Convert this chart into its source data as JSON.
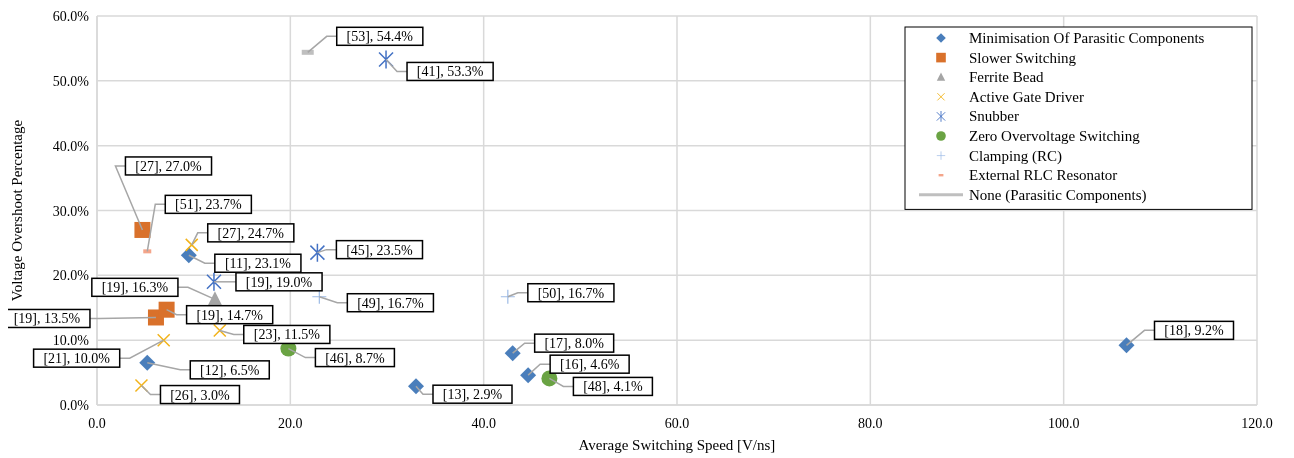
{
  "chart_data": {
    "type": "scatter",
    "xlabel": "Average Switching Speed [V/ns]",
    "ylabel": "Voltage Overshoot Percentage",
    "xlim": [
      0,
      120
    ],
    "xticks": [
      {
        "value": 0,
        "label": "0.0"
      },
      {
        "value": 20,
        "label": "20.0"
      },
      {
        "value": 40,
        "label": "40.0"
      },
      {
        "value": 60,
        "label": "60.0"
      },
      {
        "value": 80,
        "label": "80.0"
      },
      {
        "value": 100,
        "label": "100.0"
      },
      {
        "value": 120,
        "label": "120.0"
      }
    ],
    "ylim": [
      0,
      60
    ],
    "yticks": [
      {
        "value": 0,
        "label": "0.0%"
      },
      {
        "value": 10,
        "label": "10.0%"
      },
      {
        "value": 20,
        "label": "20.0%"
      },
      {
        "value": 30,
        "label": "30.0%"
      },
      {
        "value": 40,
        "label": "40.0%"
      },
      {
        "value": 50,
        "label": "50.0%"
      },
      {
        "value": 60,
        "label": "60.0%"
      }
    ],
    "grid": true,
    "legend": "top right",
    "series": [
      {
        "name": "Minimisation Of Parasitic Components",
        "color": "#4a7ebb",
        "marker": "diamond",
        "x": [
          9.5,
          5.2,
          33.0,
          43.0,
          44.6,
          106.5
        ],
        "values": [
          23.1,
          6.5,
          2.9,
          8.0,
          4.6,
          9.2
        ],
        "value_labels": [
          "[11], 23.1%",
          "[12], 6.5%",
          "[13], 2.9%",
          "[17], 8.0%",
          "[16], 4.6%",
          "[18], 9.2%"
        ]
      },
      {
        "name": "Slower Switching",
        "color": "#d9712b",
        "marker": "square",
        "x": [
          4.7,
          6.1,
          7.2
        ],
        "values": [
          27.0,
          13.5,
          14.7
        ],
        "value_labels": [
          "[27], 27.0%",
          "[19], 13.5%",
          "[19], 14.7%"
        ]
      },
      {
        "name": "Ferrite Bead",
        "color": "#a5a5a5",
        "marker": "triangle",
        "x": [
          12.2
        ],
        "values": [
          16.3
        ],
        "value_labels": [
          "[19], 16.3%"
        ]
      },
      {
        "name": "Active Gate Driver",
        "color": "#f2b31a",
        "marker": "cross",
        "x": [
          9.8,
          6.9,
          12.7,
          4.6
        ],
        "values": [
          24.7,
          10.0,
          11.5,
          3.0
        ],
        "value_labels": [
          "[27], 24.7%",
          "[21], 10.0%",
          "[23], 11.5%",
          "[26], 3.0%"
        ]
      },
      {
        "name": "Snubber",
        "color": "#4472c4",
        "marker": "cross",
        "x": [
          29.9,
          22.8,
          12.1
        ],
        "values": [
          53.3,
          23.5,
          19.0
        ],
        "value_labels": [
          "[41], 53.3%",
          "[45], 23.5%",
          "[19], 19.0%"
        ]
      },
      {
        "name": "Zero Overvoltage Switching",
        "color": "#6aa343",
        "marker": "circle",
        "x": [
          19.8,
          46.8
        ],
        "values": [
          8.7,
          4.1
        ],
        "value_labels": [
          "[46], 8.7%",
          "[48], 4.1%"
        ]
      },
      {
        "name": "Clamping (RC)",
        "color": "#9dbbe6",
        "marker": "cross",
        "x": [
          23.0,
          42.5
        ],
        "values": [
          16.7,
          16.7
        ],
        "value_labels": [
          "[49], 16.7%",
          "[50], 16.7%"
        ]
      },
      {
        "name": "External RLC Resonator",
        "color": "#f4a58a",
        "marker": "square",
        "x": [
          5.2
        ],
        "values": [
          23.7
        ],
        "value_labels": [
          "[51], 23.7%"
        ]
      },
      {
        "name": "None (Parasitic Components)",
        "color": "#bfbfbf",
        "marker": "square",
        "x": [
          21.8
        ],
        "values": [
          54.4
        ],
        "value_labels": [
          "[53], 54.4%"
        ]
      }
    ]
  }
}
